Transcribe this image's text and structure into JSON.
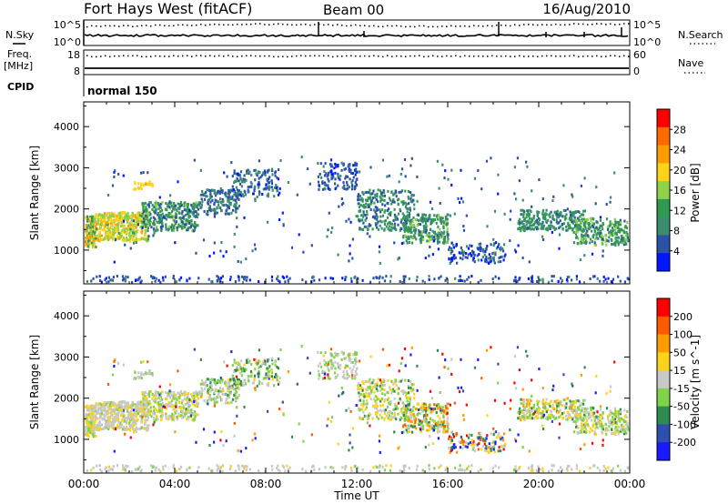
{
  "header": {
    "title": "Fort Hays West (fitACF)",
    "beam": "Beam 00",
    "date": "16/Aug/2010"
  },
  "noise_panel": {
    "left_label": "N.Sky",
    "right_label": "N.Search",
    "ytick_top": "10^5",
    "ytick_bottom": "10^0"
  },
  "freq_panel": {
    "left_label_line1": "Freq.",
    "left_label_line2": "[MHz]",
    "right_label": "Nave",
    "left_ticks": [
      "18",
      "8"
    ],
    "right_ticks": [
      "60",
      "0"
    ]
  },
  "cpid_panel": {
    "label": "CPID",
    "program": "normal 150"
  },
  "colors": {
    "power_scale": [
      "#0018ff",
      "#2b52a6",
      "#3c8c6e",
      "#2e9a52",
      "#8fd24a",
      "#ffd21a",
      "#ff9a00",
      "#ff6a00",
      "#ff0000"
    ],
    "velocity_scale": [
      "#1a1aff",
      "#2e4fb0",
      "#2e8c4e",
      "#7fd24a",
      "#c8c8c8",
      "#ffd21a",
      "#ff9a00",
      "#ff5a00",
      "#ff0000"
    ]
  },
  "chart_data": [
    {
      "type": "heatmap",
      "title": "",
      "xlabel": "Time UT",
      "ylabel": "Slant Range [km]",
      "xticks": [
        "00:00",
        "04:00",
        "08:00",
        "12:00",
        "16:00",
        "20:00",
        "00:00"
      ],
      "xlim_hours": [
        0,
        24
      ],
      "ylim_km": [
        180,
        4600
      ],
      "yticks": [
        1000,
        2000,
        3000,
        4000
      ],
      "colorbar_label": "Power [dB]",
      "colorbar_ticks": [
        4,
        8,
        12,
        16,
        20,
        24,
        28
      ],
      "colorbar_range": [
        0,
        32
      ]
    },
    {
      "type": "heatmap",
      "title": "",
      "xlabel": "Time UT",
      "ylabel": "Slant Range [km]",
      "xticks": [
        "00:00",
        "04:00",
        "08:00",
        "12:00",
        "16:00",
        "20:00",
        "00:00"
      ],
      "xlim_hours": [
        0,
        24
      ],
      "ylim_km": [
        180,
        4600
      ],
      "yticks": [
        1000,
        2000,
        3000,
        4000
      ],
      "colorbar_label": "Velocity [m s^-1]",
      "colorbar_ticks": [
        -200,
        -100,
        -50,
        -15,
        15,
        50,
        100,
        200
      ]
    }
  ]
}
